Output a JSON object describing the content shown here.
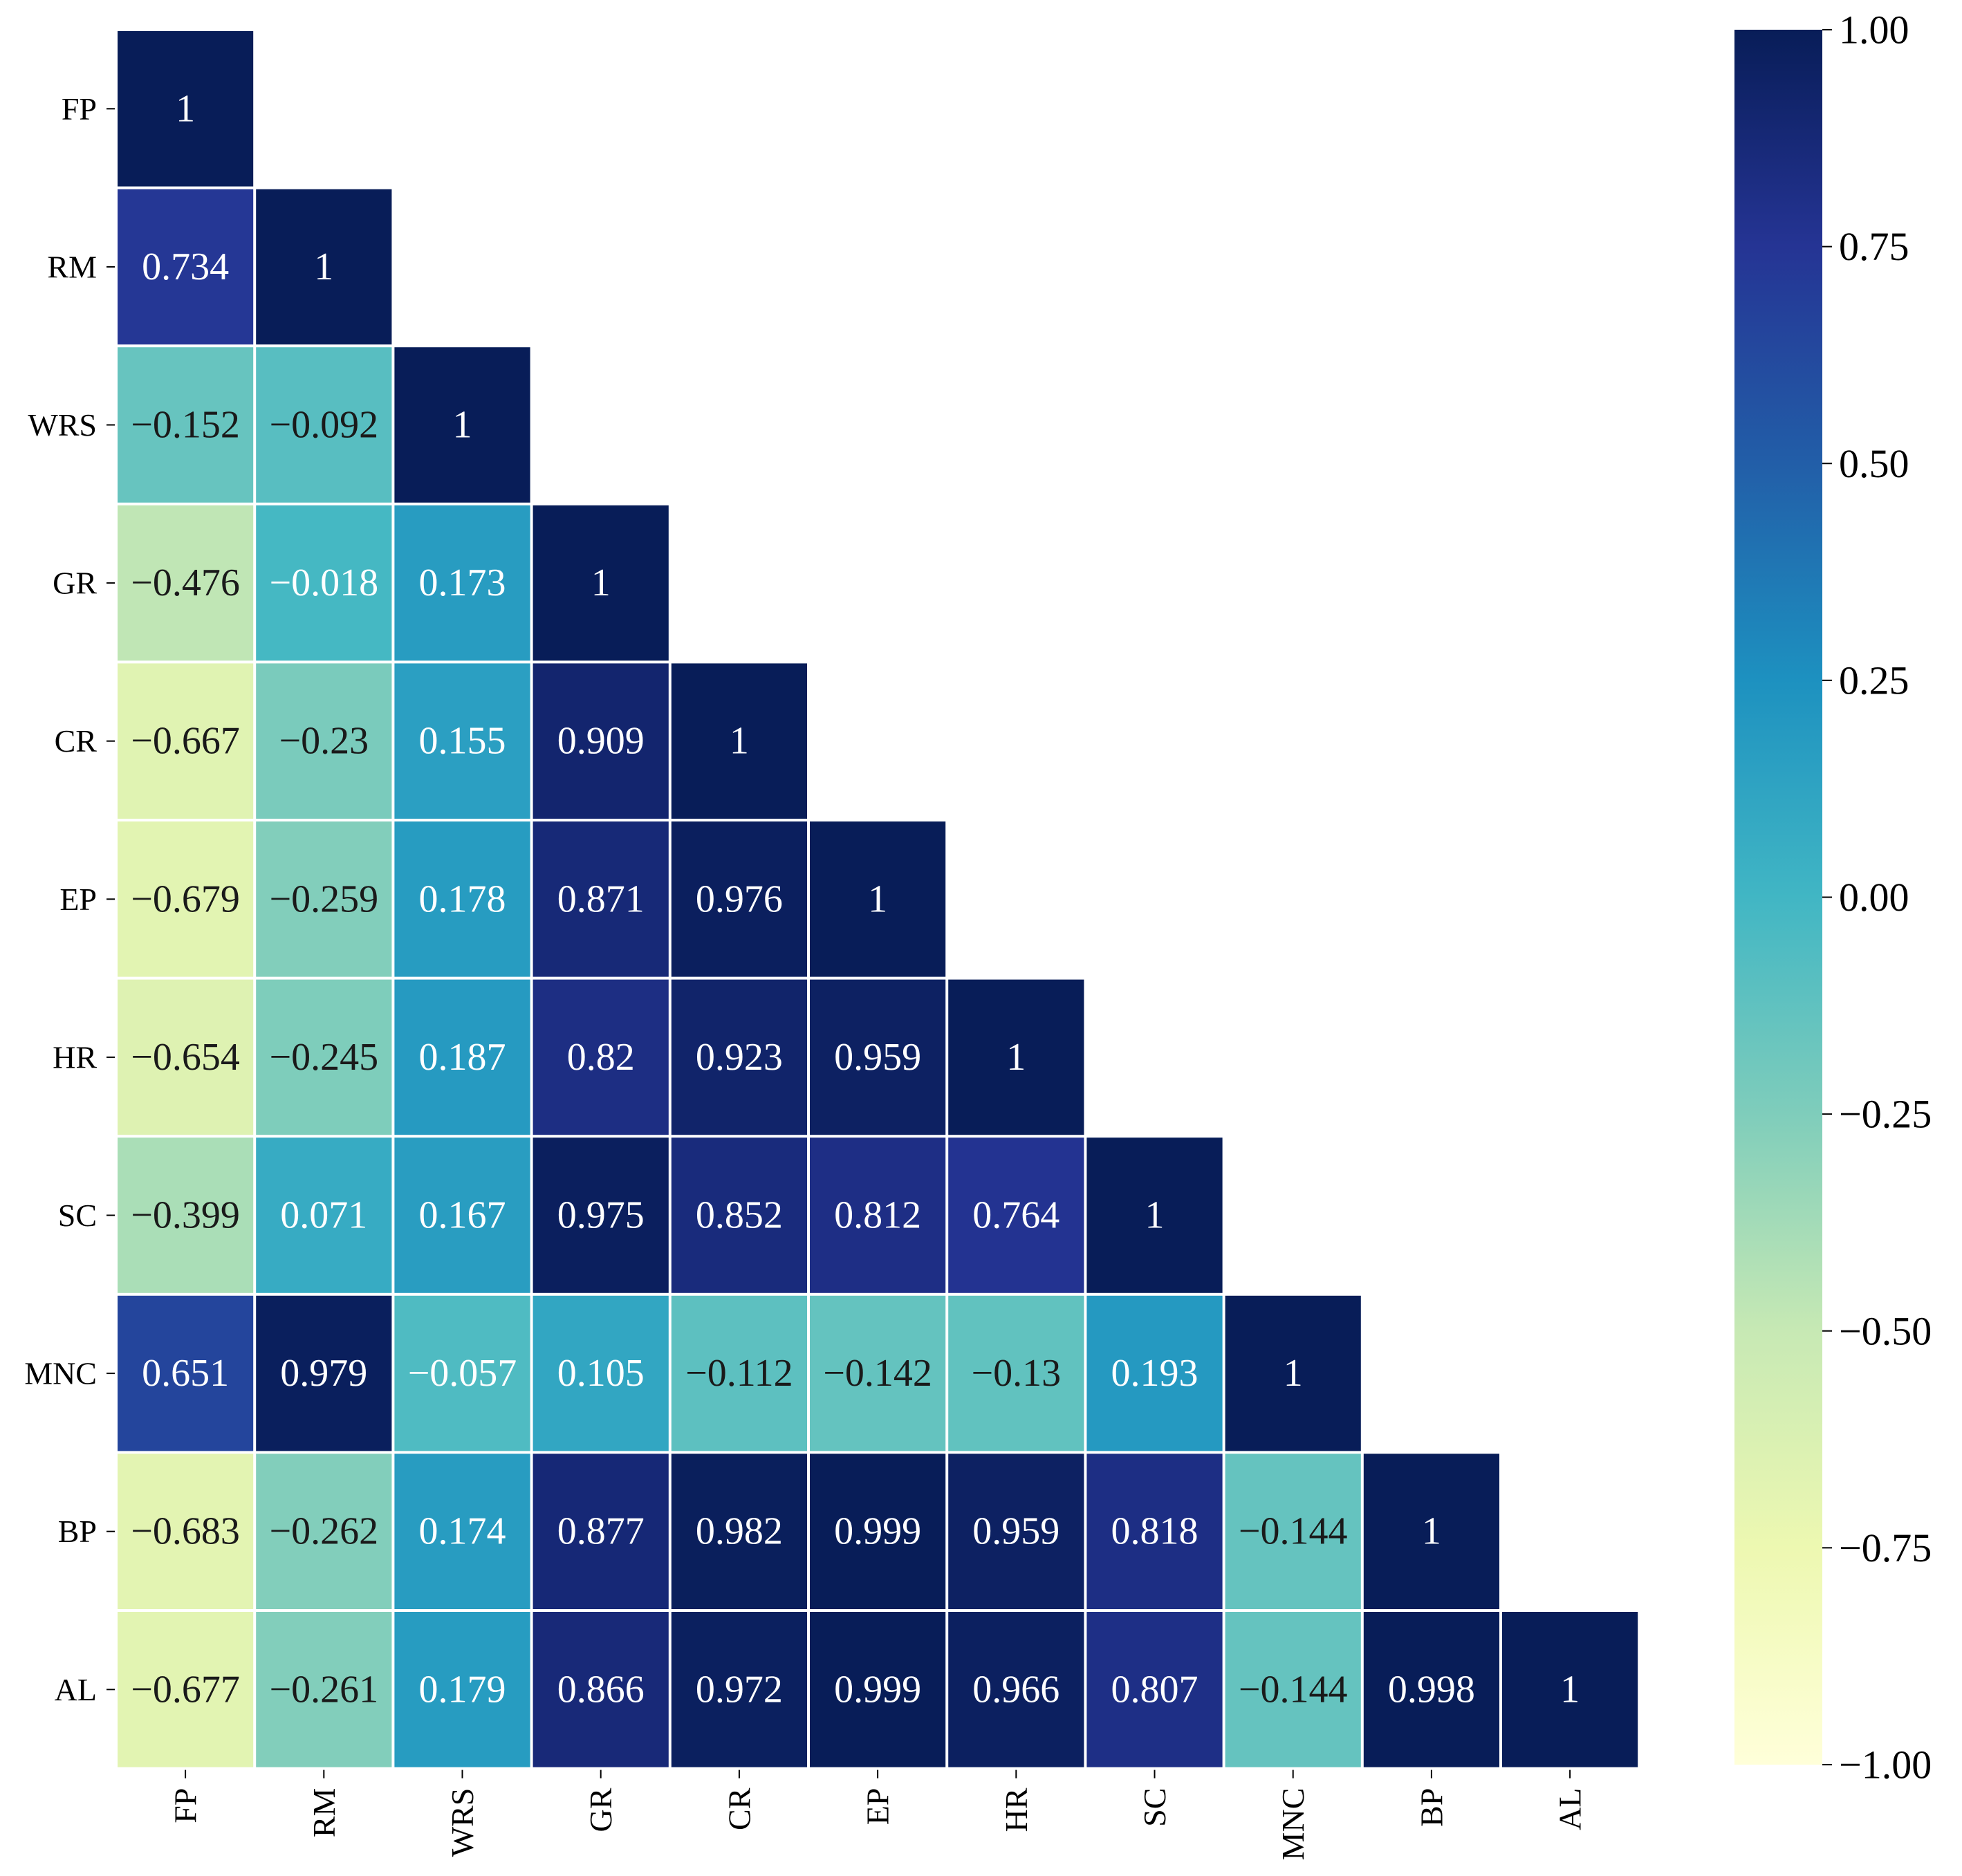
{
  "chart_data": {
    "type": "heatmap",
    "title": "",
    "xlabel": "",
    "ylabel": "",
    "labels": [
      "FP",
      "RM",
      "WRS",
      "GR",
      "CR",
      "EP",
      "HR",
      "SC",
      "MNC",
      "BP",
      "AL"
    ],
    "lower_triangle": [
      [
        "1"
      ],
      [
        "0.734",
        "1"
      ],
      [
        "−0.152",
        "−0.092",
        "1"
      ],
      [
        "−0.476",
        "−0.018",
        "0.173",
        "1"
      ],
      [
        "−0.667",
        "−0.23",
        "0.155",
        "0.909",
        "1"
      ],
      [
        "−0.679",
        "−0.259",
        "0.178",
        "0.871",
        "0.976",
        "1"
      ],
      [
        "−0.654",
        "−0.245",
        "0.187",
        "0.82",
        "0.923",
        "0.959",
        "1"
      ],
      [
        "−0.399",
        "0.071",
        "0.167",
        "0.975",
        "0.852",
        "0.812",
        "0.764",
        "1"
      ],
      [
        "0.651",
        "0.979",
        "−0.057",
        "0.105",
        "−0.112",
        "−0.142",
        "−0.13",
        "0.193",
        "1"
      ],
      [
        "−0.683",
        "−0.262",
        "0.174",
        "0.877",
        "0.982",
        "0.999",
        "0.959",
        "0.818",
        "−0.144",
        "1"
      ],
      [
        "−0.677",
        "−0.261",
        "0.179",
        "0.866",
        "0.972",
        "0.999",
        "0.966",
        "0.807",
        "−0.144",
        "0.998",
        "1"
      ]
    ],
    "colorbar": {
      "vmin": -1.0,
      "vmax": 1.0,
      "ticks": [
        1.0,
        0.75,
        0.5,
        0.25,
        0.0,
        -0.25,
        -0.5,
        -0.75,
        -1.0
      ],
      "tick_labels": [
        "1.00",
        "0.75",
        "0.50",
        "0.25",
        "0.00",
        "−0.25",
        "−0.50",
        "−0.75",
        "−1.00"
      ]
    },
    "colormap": {
      "name": "YlGnBu",
      "stops": [
        "#ffffd9",
        "#edf8b1",
        "#c7e9b4",
        "#7fcdbb",
        "#41b6c4",
        "#1d91c0",
        "#225ea8",
        "#253494",
        "#081d58"
      ]
    },
    "grid_line_color": "#ffffff"
  }
}
